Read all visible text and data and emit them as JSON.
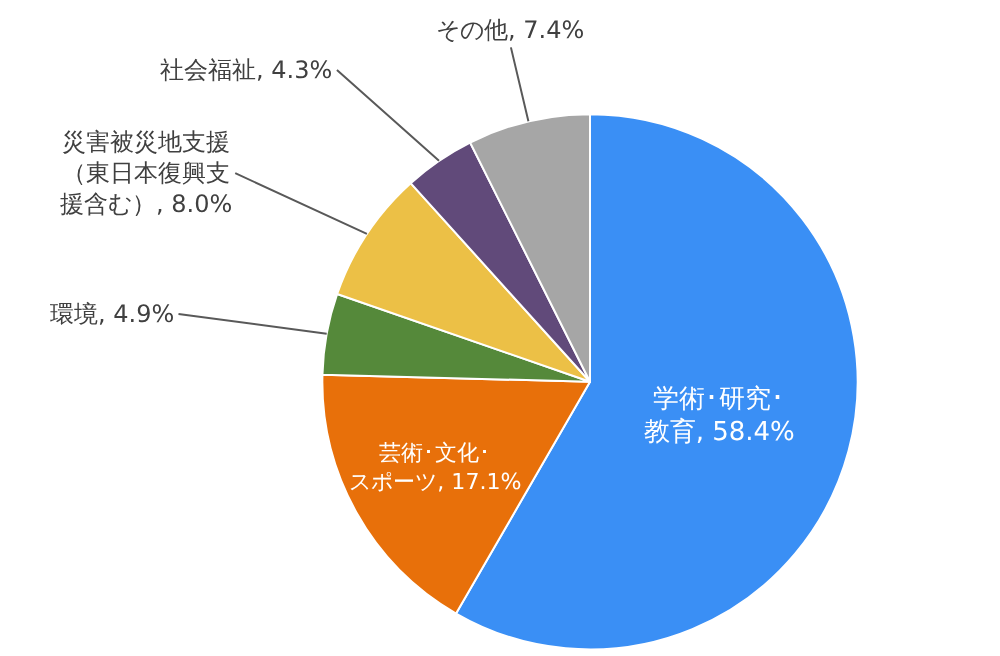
{
  "chart_data": {
    "type": "pie",
    "categories": [
      "学術･研究･教育",
      "芸術･文化･スポーツ",
      "環境",
      "災害被災地支援（東日本復興支援含む）",
      "社会福祉",
      "その他"
    ],
    "values": [
      58.4,
      17.1,
      4.9,
      8.0,
      4.3,
      7.4
    ],
    "value_labels": [
      "58.4%",
      "17.1%",
      "4.9%",
      "8.0%",
      "4.3%",
      "7.4%"
    ],
    "colors": [
      "#3a8ff5",
      "#e8700a",
      "#55893a",
      "#ecc046",
      "#614a7a",
      "#a6a6a6"
    ],
    "legend": false
  }
}
